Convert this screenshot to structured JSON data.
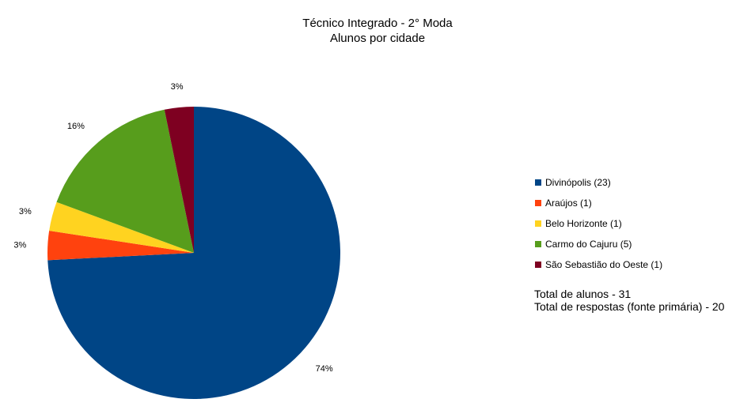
{
  "chart_data": {
    "type": "pie",
    "title": "Técnico Integrado - 2° Moda",
    "subtitle": "Alunos por cidade",
    "slices": [
      {
        "label": "Divinópolis (23)",
        "value": 23,
        "percent_label": "74%",
        "color": "#004586"
      },
      {
        "label": "Araújos (1)",
        "value": 1,
        "percent_label": "3%",
        "color": "#ff420e"
      },
      {
        "label": "Belo Horizonte (1)",
        "value": 1,
        "percent_label": "3%",
        "color": "#ffd320"
      },
      {
        "label": "Carmo do Cajuru (5)",
        "value": 5,
        "percent_label": "16%",
        "color": "#579d1c"
      },
      {
        "label": "São Sebastião do Oeste (1)",
        "value": 1,
        "percent_label": "3%",
        "color": "#7e0021"
      }
    ],
    "legend_position": "right"
  },
  "notes": {
    "total_students": "Total de alunos - 31",
    "total_responses": "Total de respostas (fonte primária) - 20"
  }
}
